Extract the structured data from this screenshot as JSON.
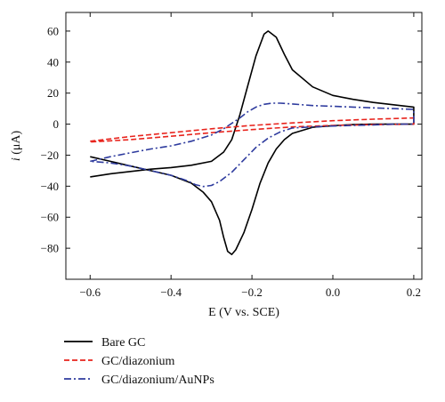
{
  "chart_data": {
    "type": "line",
    "title": "",
    "xlabel": "E (V vs. SCE)",
    "ylabel_italic": "i",
    "ylabel_unit": " (μA)",
    "xlim": [
      -0.66,
      0.22
    ],
    "ylim": [
      -100,
      72
    ],
    "x_ticks": [
      -0.6,
      -0.4,
      -0.2,
      0.0,
      0.2
    ],
    "x_tick_labels": [
      "−0.6",
      "−0.4",
      "−0.2",
      "0.0",
      "0.2"
    ],
    "y_ticks": [
      60,
      40,
      20,
      0,
      -20,
      -40,
      -60,
      -80
    ],
    "y_tick_labels": [
      "60",
      "40",
      "20",
      "0",
      "−20",
      "−40",
      "−60",
      "−80"
    ],
    "grid": false,
    "legend_position": "bottom-left, below plot",
    "series": [
      {
        "name": "Bare GC",
        "color": "#000000",
        "dash": "solid",
        "x": [
          -0.6,
          -0.55,
          -0.5,
          -0.45,
          -0.4,
          -0.35,
          -0.3,
          -0.27,
          -0.25,
          -0.23,
          -0.21,
          -0.19,
          -0.17,
          -0.16,
          -0.14,
          -0.12,
          -0.1,
          -0.05,
          0.0,
          0.05,
          0.1,
          0.15,
          0.2,
          0.2,
          0.15,
          0.1,
          0.05,
          0.0,
          -0.05,
          -0.1,
          -0.12,
          -0.14,
          -0.16,
          -0.18,
          -0.2,
          -0.22,
          -0.24,
          -0.25,
          -0.26,
          -0.27,
          -0.28,
          -0.3,
          -0.32,
          -0.35,
          -0.4,
          -0.45,
          -0.5,
          -0.55,
          -0.6
        ],
        "y": [
          -34,
          -32,
          -30.5,
          -29,
          -28,
          -26.5,
          -24,
          -18,
          -10,
          6,
          25,
          44,
          58,
          60,
          56,
          45,
          35,
          24,
          18.5,
          16,
          14,
          12.5,
          11,
          0,
          0,
          0,
          -0.3,
          -1,
          -2,
          -6,
          -10,
          -16,
          -25,
          -38,
          -55,
          -70,
          -81,
          -84,
          -82,
          -73,
          -62,
          -50,
          -44,
          -38,
          -33,
          -30,
          -27,
          -24,
          -21
        ]
      },
      {
        "name": "GC/diazonium",
        "color": "#e8231c",
        "dash": "dashed",
        "x": [
          -0.6,
          -0.5,
          -0.4,
          -0.3,
          -0.2,
          -0.1,
          0.0,
          0.1,
          0.2,
          0.2,
          0.1,
          0.0,
          -0.1,
          -0.2,
          -0.3,
          -0.4,
          -0.5,
          -0.6
        ],
        "y": [
          -11,
          -8,
          -5.5,
          -3,
          -0.8,
          0.8,
          2.2,
          3.2,
          4,
          0,
          -0.3,
          -0.8,
          -1.8,
          -3.5,
          -5.5,
          -7.8,
          -10,
          -11.5
        ]
      },
      {
        "name": "GC/diazonium/AuNPs",
        "color": "#2e3b9e",
        "dash": "dashdot",
        "x": [
          -0.6,
          -0.55,
          -0.5,
          -0.45,
          -0.4,
          -0.35,
          -0.3,
          -0.27,
          -0.25,
          -0.23,
          -0.21,
          -0.19,
          -0.17,
          -0.15,
          -0.13,
          -0.1,
          -0.05,
          0.0,
          0.05,
          0.1,
          0.15,
          0.2,
          0.2,
          0.15,
          0.1,
          0.05,
          0.0,
          -0.05,
          -0.1,
          -0.13,
          -0.16,
          -0.19,
          -0.22,
          -0.25,
          -0.28,
          -0.3,
          -0.32,
          -0.34,
          -0.36,
          -0.4,
          -0.45,
          -0.5,
          -0.55,
          -0.6
        ],
        "y": [
          -24,
          -21,
          -18.5,
          -16,
          -14,
          -11,
          -7,
          -3,
          0.5,
          4,
          8,
          11,
          12.8,
          13.5,
          13.5,
          13,
          12,
          11.5,
          11,
          10.5,
          10,
          9.5,
          0,
          0,
          -0.5,
          -0.8,
          -1.2,
          -1.8,
          -2.5,
          -5,
          -9,
          -15,
          -23,
          -31,
          -37,
          -39.5,
          -40.2,
          -39,
          -36.5,
          -33,
          -30,
          -27,
          -25,
          -24
        ]
      }
    ]
  }
}
